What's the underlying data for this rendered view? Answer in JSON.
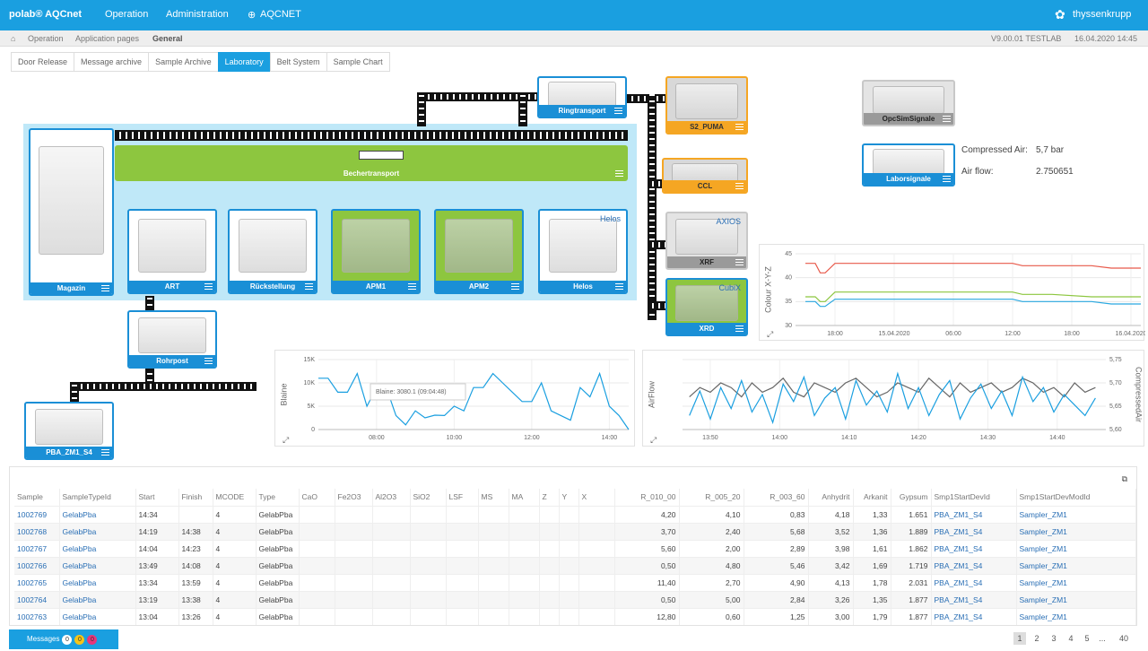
{
  "header": {
    "brand": "polab® AQCnet",
    "nav": [
      "Operation",
      "Administration",
      "AQCNET"
    ],
    "company": "thyssenkrupp"
  },
  "breadcrumb": {
    "items": [
      "Operation",
      "Application pages",
      "General"
    ],
    "version": "V9.00.01 TESTLAB",
    "datetime": "16.04.2020 14:45"
  },
  "tabs": {
    "items": [
      "Door Release",
      "Message archive",
      "Sample Archive",
      "Laboratory",
      "Belt System",
      "Sample Chart"
    ],
    "active": 3
  },
  "plant": {
    "nodes": [
      {
        "label": "Magazin"
      },
      {
        "label": "Bechertransport"
      },
      {
        "label": "ART"
      },
      {
        "label": "Rückstellung"
      },
      {
        "label": "APM1"
      },
      {
        "label": "APM2"
      },
      {
        "label": "Helos",
        "icon_text": "Helos"
      },
      {
        "label": "Rohrpost"
      },
      {
        "label": "PBA_ZM1_S4"
      },
      {
        "label": "Ringtransport"
      },
      {
        "label": "S2_PUMA"
      },
      {
        "label": "CCL"
      },
      {
        "label": "XRF",
        "icon_text": "AXIOS"
      },
      {
        "label": "XRD",
        "icon_text": "CubiX"
      },
      {
        "label": "OpcSimSignale"
      },
      {
        "label": "Laborsignale"
      }
    ]
  },
  "signals": [
    {
      "label": "Compressed Air:",
      "value": "5,7 bar"
    },
    {
      "label": "Air flow:",
      "value": "2.750651"
    }
  ],
  "chart_data": [
    {
      "type": "line",
      "y_label": "Colour X-Y-Z",
      "xlim": [
        14,
        49
      ],
      "ylim": [
        30,
        45
      ],
      "yticks": [
        30,
        35,
        40,
        45
      ],
      "xticks": [
        {
          "value": 18,
          "label": "18:00"
        },
        {
          "value": 24,
          "label": "15.04.2020"
        },
        {
          "value": 30,
          "label": "06:00"
        },
        {
          "value": 36,
          "label": "12:00"
        },
        {
          "value": 42,
          "label": "18:00"
        },
        {
          "value": 48,
          "label": "16.04.2020"
        }
      ],
      "grid": true,
      "x": [
        15,
        16,
        16.5,
        17,
        18,
        20,
        24,
        28,
        32,
        36,
        37,
        40,
        44,
        46,
        48,
        49
      ],
      "series": [
        {
          "color": "#e8594a",
          "values": [
            43,
            43,
            41,
            41,
            43,
            43,
            43,
            43,
            43,
            43,
            42.5,
            42.5,
            42.5,
            42,
            42,
            42
          ]
        },
        {
          "color": "#8cc63f",
          "values": [
            36,
            36,
            35,
            35,
            37,
            37,
            37,
            37,
            37,
            37,
            36.5,
            36.5,
            36,
            36,
            36,
            36
          ]
        },
        {
          "color": "#29a8e0",
          "values": [
            35,
            35,
            34,
            34,
            35.5,
            35.5,
            35.5,
            35.5,
            35.5,
            35.5,
            35,
            35,
            35,
            34.5,
            34.5,
            34.5
          ]
        }
      ]
    },
    {
      "type": "line",
      "y_label": "Blaine",
      "xlim": [
        6.5,
        14.5
      ],
      "ylim": [
        0,
        15000
      ],
      "yticks": [
        0,
        {
          "value": 5000,
          "label": "5K"
        },
        {
          "value": 10000,
          "label": "10K"
        },
        {
          "value": 15000,
          "label": "15K"
        }
      ],
      "xticks": [
        {
          "value": 8,
          "label": "08:00"
        },
        {
          "value": 10,
          "label": "10:00"
        },
        {
          "value": 12,
          "label": "12:00"
        },
        {
          "value": 14,
          "label": "14:00"
        }
      ],
      "grid": true,
      "tooltip": "Blaine: 3080.1 (09:04:48)",
      "x": [
        6.5,
        6.75,
        7,
        7.25,
        7.5,
        7.75,
        8,
        8.25,
        8.5,
        8.75,
        9,
        9.25,
        9.5,
        9.75,
        10,
        10.25,
        10.5,
        10.75,
        11,
        11.25,
        11.5,
        11.75,
        12,
        12.25,
        12.5,
        12.75,
        13,
        13.25,
        13.5,
        13.75,
        14,
        14.25,
        14.5
      ],
      "series": [
        {
          "color": "#1a9fe0",
          "values": [
            11000,
            11000,
            8000,
            8000,
            12000,
            5000,
            9000,
            9000,
            3000,
            1000,
            4000,
            2500,
            3080.1,
            3000,
            5000,
            4000,
            9000,
            9000,
            12000,
            10000,
            8000,
            6000,
            6000,
            10000,
            4000,
            3000,
            2000,
            9000,
            7000,
            12000,
            5000,
            3000,
            0
          ]
        }
      ]
    },
    {
      "type": "line",
      "y_label": "AirFlow",
      "y2_label": "CompressedAir",
      "xlim": [
        46,
        107
      ],
      "ylim": [
        0,
        100
      ],
      "y2lim": [
        5.6,
        5.75
      ],
      "y2ticks": [
        {
          "value": 5.6,
          "label": "5,60"
        },
        {
          "value": 5.65,
          "label": "5,65"
        },
        {
          "value": 5.7,
          "label": "5,70"
        },
        {
          "value": 5.75,
          "label": "5,75"
        }
      ],
      "xticks": [
        {
          "value": 50,
          "label": "13:50"
        },
        {
          "value": 60,
          "label": "14:00"
        },
        {
          "value": 70,
          "label": "14:10"
        },
        {
          "value": 80,
          "label": "14:20"
        },
        {
          "value": 90,
          "label": "14:30"
        },
        {
          "value": 100,
          "label": "14:40"
        }
      ],
      "grid": true,
      "x": [
        47,
        48.5,
        50,
        51.5,
        53,
        54.5,
        56,
        57.5,
        59,
        60.5,
        62,
        63.5,
        65,
        66.5,
        68,
        69.5,
        71,
        72.5,
        74,
        75.5,
        77,
        78.5,
        80,
        81.5,
        83,
        84.5,
        86,
        87.5,
        89,
        90.5,
        92,
        93.5,
        95,
        96.5,
        98,
        99.5,
        101,
        102.5,
        104,
        105.5
      ],
      "series": [
        {
          "name": "CompressedAir",
          "axis": "y2",
          "color": "#666666",
          "values": [
            5.67,
            5.69,
            5.68,
            5.7,
            5.69,
            5.67,
            5.7,
            5.68,
            5.69,
            5.71,
            5.68,
            5.67,
            5.7,
            5.69,
            5.68,
            5.7,
            5.71,
            5.69,
            5.67,
            5.68,
            5.7,
            5.69,
            5.68,
            5.71,
            5.69,
            5.67,
            5.7,
            5.68,
            5.69,
            5.7,
            5.68,
            5.69,
            5.71,
            5.7,
            5.68,
            5.69,
            5.67,
            5.7,
            5.68,
            5.69
          ]
        },
        {
          "name": "AirFlow",
          "color": "#1a9fe0",
          "values": [
            20,
            55,
            15,
            60,
            30,
            70,
            25,
            50,
            10,
            65,
            40,
            75,
            20,
            45,
            60,
            15,
            70,
            35,
            55,
            25,
            80,
            30,
            60,
            20,
            50,
            70,
            15,
            45,
            65,
            30,
            55,
            20,
            75,
            40,
            60,
            25,
            50,
            35,
            20,
            45
          ]
        }
      ]
    }
  ],
  "table": {
    "columns": [
      "Sample",
      "SampleTypeId",
      "Start",
      "Finish",
      "MCODE",
      "Type",
      "CaO",
      "Fe2O3",
      "Al2O3",
      "SiO2",
      "LSF",
      "MS",
      "MA",
      "Z",
      "Y",
      "X",
      "R_010_00",
      "R_005_20",
      "R_003_60",
      "Anhydrit",
      "Arkanit",
      "Gypsum",
      "Smp1StartDevId",
      "Smp1StartDevModId"
    ],
    "rows": [
      [
        "1002769",
        "GelabPba",
        "14:34",
        null,
        "4",
        "GelabPba",
        null,
        null,
        null,
        null,
        null,
        null,
        null,
        null,
        null,
        null,
        "4,20",
        "4,10",
        "0,83",
        "4,18",
        "1,33",
        "1.651",
        "PBA_ZM1_S4",
        "Sampler_ZM1"
      ],
      [
        "1002768",
        "GelabPba",
        "14:19",
        "14:38",
        "4",
        "GelabPba",
        null,
        null,
        null,
        null,
        null,
        null,
        null,
        null,
        null,
        null,
        "3,70",
        "2,40",
        "5,68",
        "3,52",
        "1,36",
        "1.889",
        "PBA_ZM1_S4",
        "Sampler_ZM1"
      ],
      [
        "1002767",
        "GelabPba",
        "14:04",
        "14:23",
        "4",
        "GelabPba",
        null,
        null,
        null,
        null,
        null,
        null,
        null,
        null,
        null,
        null,
        "5,60",
        "2,00",
        "2,89",
        "3,98",
        "1,61",
        "1.862",
        "PBA_ZM1_S4",
        "Sampler_ZM1"
      ],
      [
        "1002766",
        "GelabPba",
        "13:49",
        "14:08",
        "4",
        "GelabPba",
        null,
        null,
        null,
        null,
        null,
        null,
        null,
        null,
        null,
        null,
        "0,50",
        "4,80",
        "5,46",
        "3,42",
        "1,69",
        "1.719",
        "PBA_ZM1_S4",
        "Sampler_ZM1"
      ],
      [
        "1002765",
        "GelabPba",
        "13:34",
        "13:59",
        "4",
        "GelabPba",
        null,
        null,
        null,
        null,
        null,
        null,
        null,
        null,
        null,
        null,
        "11,40",
        "2,70",
        "4,90",
        "4,13",
        "1,78",
        "2.031",
        "PBA_ZM1_S4",
        "Sampler_ZM1"
      ],
      [
        "1002764",
        "GelabPba",
        "13:19",
        "13:38",
        "4",
        "GelabPba",
        null,
        null,
        null,
        null,
        null,
        null,
        null,
        null,
        null,
        null,
        "0,50",
        "5,00",
        "2,84",
        "3,26",
        "1,35",
        "1.877",
        "PBA_ZM1_S4",
        "Sampler_ZM1"
      ],
      [
        "1002763",
        "GelabPba",
        "13:04",
        "13:26",
        "4",
        "GelabPba",
        null,
        null,
        null,
        null,
        null,
        null,
        null,
        null,
        null,
        null,
        "12,80",
        "0,60",
        "1,25",
        "3,00",
        "1,79",
        "1.877",
        "PBA_ZM1_S4",
        "Sampler_ZM1"
      ]
    ]
  },
  "footer": {
    "messages": "Messages",
    "badges": [
      "0",
      "0",
      "0"
    ],
    "pages": [
      "1",
      "2",
      "3",
      "4",
      "5",
      "...",
      "40"
    ]
  }
}
